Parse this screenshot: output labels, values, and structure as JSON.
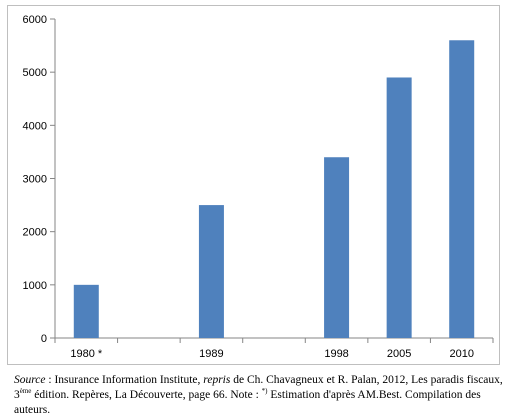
{
  "chart_data": {
    "type": "bar",
    "title": "",
    "xlabel": "",
    "ylabel": "",
    "categories": [
      "1980 *",
      "",
      "1989",
      "",
      "1998",
      "2005",
      "2010"
    ],
    "values": [
      1000,
      null,
      2500,
      null,
      3400,
      4900,
      5600
    ],
    "ylim": [
      0,
      6000
    ],
    "yticks": [
      0,
      1000,
      2000,
      3000,
      4000,
      5000,
      6000
    ],
    "grid": false,
    "legend": "none",
    "bar_color": "#4f81bd"
  },
  "source": {
    "label": "Source",
    "sep": " : ",
    "part1": "Insurance Information Institute, ",
    "repris": "repris",
    "part2": " de Ch. Chavagneux et R. Palan, 2012, Les paradis fiscaux, 3",
    "sup_ed": "ème",
    "part3": " édition. Repères, La Découverte, page 66. Note : ",
    "sup_star": "*)",
    "part4": " Estimation d'après AM.Best. Compilation des auteurs."
  }
}
